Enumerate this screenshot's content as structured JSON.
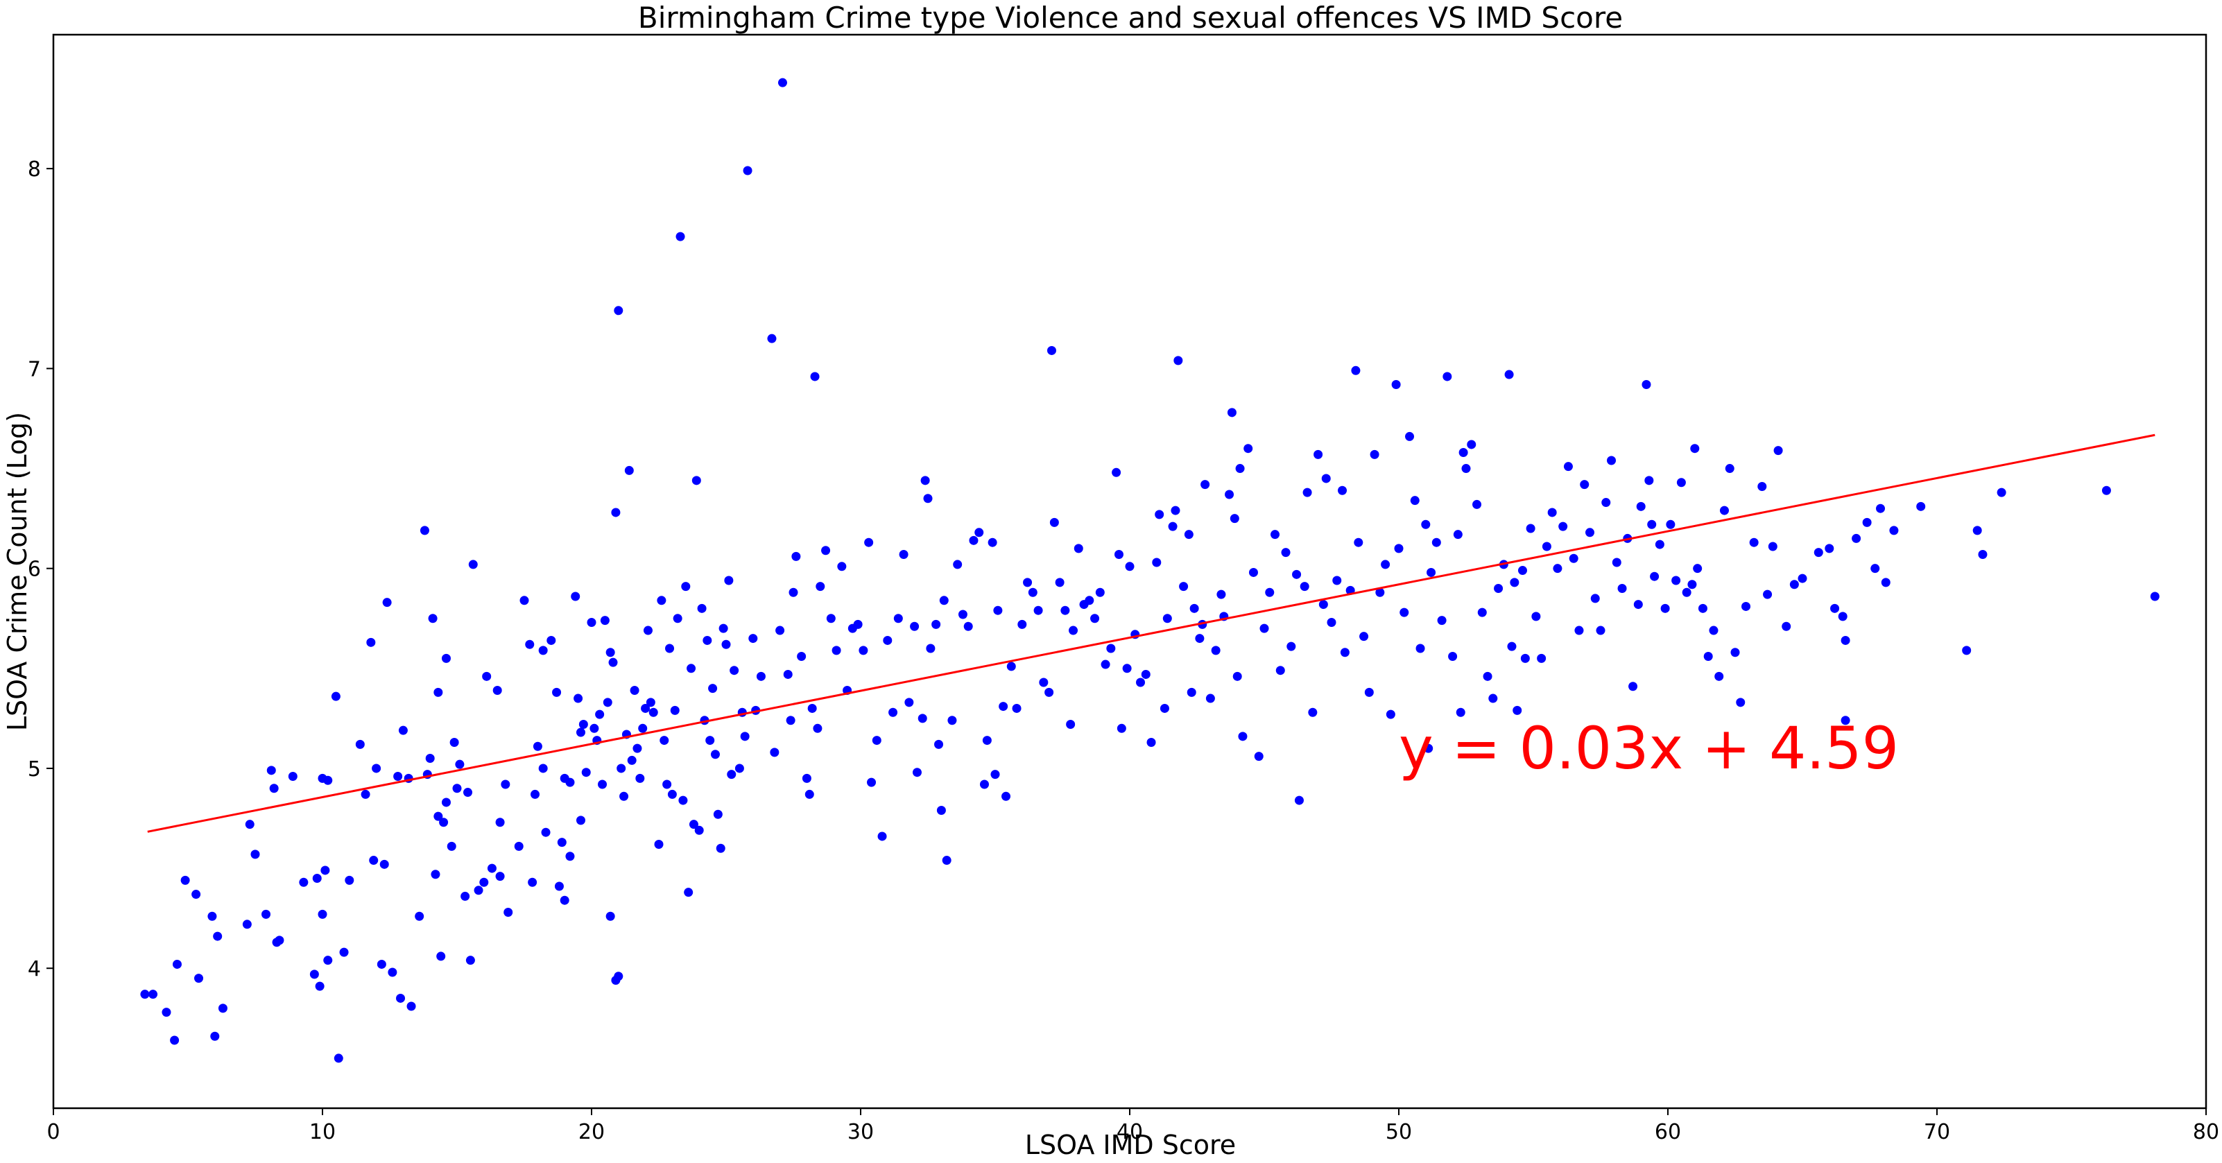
{
  "chart_data": {
    "type": "scatter",
    "title": "Birmingham Crime type Violence and sexual offences VS IMD Score",
    "xlabel": "LSOA IMD Score",
    "ylabel": "LSOA Crime Count (Log)",
    "xlim": [
      0,
      80
    ],
    "ylim": [
      3.3,
      8.67
    ],
    "x_ticks": [
      0,
      10,
      20,
      30,
      40,
      50,
      60,
      70,
      80
    ],
    "y_ticks": [
      4,
      5,
      6,
      7,
      8
    ],
    "grid": false,
    "legend": "none",
    "point_color": "#0000ff",
    "line_color": "#ff0000",
    "annotation": {
      "text": "y = 0.03x + 4.59",
      "x": 50,
      "y": 5.0,
      "color": "#ff0000"
    },
    "regression": {
      "slope": 0.0266,
      "intercept": 4.59,
      "x_range": [
        3.5,
        78.1
      ]
    },
    "points": [
      [
        3.4,
        3.87
      ],
      [
        3.7,
        3.87
      ],
      [
        4.2,
        3.78
      ],
      [
        4.5,
        3.64
      ],
      [
        4.6,
        4.02
      ],
      [
        4.9,
        4.44
      ],
      [
        5.3,
        4.37
      ],
      [
        5.4,
        3.95
      ],
      [
        5.9,
        4.26
      ],
      [
        6.0,
        3.66
      ],
      [
        6.1,
        4.16
      ],
      [
        6.3,
        3.8
      ],
      [
        7.2,
        4.22
      ],
      [
        7.3,
        4.72
      ],
      [
        7.5,
        4.57
      ],
      [
        7.9,
        4.27
      ],
      [
        8.1,
        4.99
      ],
      [
        8.2,
        4.9
      ],
      [
        8.3,
        4.13
      ],
      [
        8.4,
        4.14
      ],
      [
        8.9,
        4.96
      ],
      [
        9.3,
        4.43
      ],
      [
        9.7,
        3.97
      ],
      [
        9.8,
        4.45
      ],
      [
        9.9,
        3.91
      ],
      [
        10.0,
        4.95
      ],
      [
        10.0,
        4.27
      ],
      [
        10.1,
        4.49
      ],
      [
        10.2,
        4.94
      ],
      [
        10.2,
        4.04
      ],
      [
        10.5,
        5.36
      ],
      [
        10.6,
        3.55
      ],
      [
        10.8,
        4.08
      ],
      [
        11.0,
        4.44
      ],
      [
        11.4,
        5.12
      ],
      [
        11.6,
        4.87
      ],
      [
        11.8,
        5.63
      ],
      [
        11.9,
        4.54
      ],
      [
        12.0,
        5.0
      ],
      [
        12.2,
        4.02
      ],
      [
        12.3,
        4.52
      ],
      [
        12.4,
        5.83
      ],
      [
        12.6,
        3.98
      ],
      [
        12.8,
        4.96
      ],
      [
        12.9,
        3.85
      ],
      [
        13.3,
        3.81
      ],
      [
        13.2,
        4.95
      ],
      [
        13.0,
        5.19
      ],
      [
        13.6,
        4.26
      ],
      [
        13.8,
        6.19
      ],
      [
        13.9,
        4.97
      ],
      [
        14.0,
        5.05
      ],
      [
        14.1,
        5.75
      ],
      [
        14.2,
        4.47
      ],
      [
        14.3,
        5.38
      ],
      [
        14.3,
        4.76
      ],
      [
        14.4,
        4.06
      ],
      [
        14.6,
        4.83
      ],
      [
        14.6,
        5.55
      ],
      [
        14.8,
        4.61
      ],
      [
        14.9,
        5.13
      ],
      [
        14.5,
        4.73
      ],
      [
        15.0,
        4.9
      ],
      [
        15.1,
        5.02
      ],
      [
        15.3,
        4.36
      ],
      [
        15.4,
        4.88
      ],
      [
        15.5,
        4.04
      ],
      [
        15.6,
        6.02
      ],
      [
        15.8,
        4.39
      ],
      [
        16.0,
        4.43
      ],
      [
        16.1,
        5.46
      ],
      [
        16.3,
        4.5
      ],
      [
        16.5,
        5.39
      ],
      [
        16.6,
        4.73
      ],
      [
        16.6,
        4.46
      ],
      [
        16.8,
        4.92
      ],
      [
        16.9,
        4.28
      ],
      [
        17.3,
        4.61
      ],
      [
        17.5,
        5.84
      ],
      [
        17.7,
        5.62
      ],
      [
        17.8,
        4.43
      ],
      [
        17.9,
        4.87
      ],
      [
        18.0,
        5.11
      ],
      [
        18.2,
        5.0
      ],
      [
        18.2,
        5.59
      ],
      [
        18.3,
        4.68
      ],
      [
        18.5,
        5.64
      ],
      [
        18.7,
        5.38
      ],
      [
        18.8,
        4.41
      ],
      [
        18.9,
        4.63
      ],
      [
        19.0,
        4.34
      ],
      [
        19.0,
        4.95
      ],
      [
        19.2,
        4.56
      ],
      [
        19.2,
        4.93
      ],
      [
        19.4,
        5.86
      ],
      [
        19.5,
        5.35
      ],
      [
        19.6,
        4.74
      ],
      [
        19.6,
        5.18
      ],
      [
        19.7,
        5.22
      ],
      [
        19.8,
        4.98
      ],
      [
        20.0,
        5.73
      ],
      [
        20.1,
        5.2
      ],
      [
        20.2,
        5.14
      ],
      [
        20.3,
        5.27
      ],
      [
        20.4,
        4.92
      ],
      [
        20.5,
        5.74
      ],
      [
        20.6,
        5.33
      ],
      [
        20.7,
        4.26
      ],
      [
        20.7,
        5.58
      ],
      [
        20.8,
        5.53
      ],
      [
        20.9,
        6.28
      ],
      [
        20.9,
        3.94
      ],
      [
        21.0,
        3.96
      ],
      [
        21.0,
        7.29
      ],
      [
        21.1,
        5.0
      ],
      [
        21.2,
        4.86
      ],
      [
        21.3,
        5.17
      ],
      [
        21.4,
        6.49
      ],
      [
        21.5,
        5.04
      ],
      [
        21.6,
        5.39
      ],
      [
        21.7,
        5.1
      ],
      [
        21.8,
        4.95
      ],
      [
        21.9,
        5.2
      ],
      [
        22.0,
        5.3
      ],
      [
        22.1,
        5.69
      ],
      [
        22.2,
        5.33
      ],
      [
        22.3,
        5.28
      ],
      [
        22.5,
        4.62
      ],
      [
        22.6,
        5.84
      ],
      [
        22.7,
        5.14
      ],
      [
        22.8,
        4.92
      ],
      [
        22.9,
        5.6
      ],
      [
        23.0,
        4.87
      ],
      [
        23.1,
        5.29
      ],
      [
        23.2,
        5.75
      ],
      [
        23.3,
        7.66
      ],
      [
        23.4,
        4.84
      ],
      [
        23.5,
        5.91
      ],
      [
        23.6,
        4.38
      ],
      [
        23.7,
        5.5
      ],
      [
        23.8,
        4.72
      ],
      [
        23.9,
        6.44
      ],
      [
        24.0,
        4.69
      ],
      [
        24.1,
        5.8
      ],
      [
        24.2,
        5.24
      ],
      [
        24.3,
        5.64
      ],
      [
        24.4,
        5.14
      ],
      [
        24.5,
        5.4
      ],
      [
        24.6,
        5.07
      ],
      [
        24.7,
        4.77
      ],
      [
        24.8,
        4.6
      ],
      [
        24.9,
        5.7
      ],
      [
        25.0,
        5.62
      ],
      [
        25.1,
        5.94
      ],
      [
        25.2,
        4.97
      ],
      [
        25.3,
        5.49
      ],
      [
        25.5,
        5.0
      ],
      [
        25.6,
        5.28
      ],
      [
        25.7,
        5.16
      ],
      [
        25.8,
        7.99
      ],
      [
        26.0,
        5.65
      ],
      [
        26.1,
        5.29
      ],
      [
        26.3,
        5.46
      ],
      [
        26.7,
        7.15
      ],
      [
        26.8,
        5.08
      ],
      [
        27.0,
        5.69
      ],
      [
        27.1,
        8.43
      ],
      [
        27.3,
        5.47
      ],
      [
        27.4,
        5.24
      ],
      [
        27.5,
        5.88
      ],
      [
        27.6,
        6.06
      ],
      [
        27.8,
        5.56
      ],
      [
        28.0,
        4.95
      ],
      [
        28.1,
        4.87
      ],
      [
        28.2,
        5.3
      ],
      [
        28.3,
        6.96
      ],
      [
        28.4,
        5.2
      ],
      [
        28.5,
        5.91
      ],
      [
        28.7,
        6.09
      ],
      [
        28.9,
        5.75
      ],
      [
        29.1,
        5.59
      ],
      [
        29.3,
        6.01
      ],
      [
        29.5,
        5.39
      ],
      [
        29.7,
        5.7
      ],
      [
        29.9,
        5.72
      ],
      [
        30.1,
        5.59
      ],
      [
        30.3,
        6.13
      ],
      [
        30.4,
        4.93
      ],
      [
        30.6,
        5.14
      ],
      [
        30.8,
        4.66
      ],
      [
        31.0,
        5.64
      ],
      [
        31.2,
        5.28
      ],
      [
        31.4,
        5.75
      ],
      [
        31.6,
        6.07
      ],
      [
        31.8,
        5.33
      ],
      [
        32.0,
        5.71
      ],
      [
        32.1,
        4.98
      ],
      [
        32.3,
        5.25
      ],
      [
        32.4,
        6.44
      ],
      [
        32.5,
        6.35
      ],
      [
        32.6,
        5.6
      ],
      [
        32.8,
        5.72
      ],
      [
        32.9,
        5.12
      ],
      [
        33.0,
        4.79
      ],
      [
        33.1,
        5.84
      ],
      [
        33.2,
        4.54
      ],
      [
        33.4,
        5.24
      ],
      [
        33.6,
        6.02
      ],
      [
        33.8,
        5.77
      ],
      [
        34.0,
        5.71
      ],
      [
        34.2,
        6.14
      ],
      [
        34.4,
        6.18
      ],
      [
        34.6,
        4.92
      ],
      [
        34.7,
        5.14
      ],
      [
        34.9,
        6.13
      ],
      [
        35.0,
        4.97
      ],
      [
        35.1,
        5.79
      ],
      [
        35.3,
        5.31
      ],
      [
        35.4,
        4.86
      ],
      [
        35.6,
        5.51
      ],
      [
        35.8,
        5.3
      ],
      [
        36.0,
        5.72
      ],
      [
        36.2,
        5.93
      ],
      [
        36.4,
        5.88
      ],
      [
        36.6,
        5.79
      ],
      [
        36.8,
        5.43
      ],
      [
        37.0,
        5.38
      ],
      [
        37.1,
        7.09
      ],
      [
        37.2,
        6.23
      ],
      [
        37.4,
        5.93
      ],
      [
        37.6,
        5.79
      ],
      [
        37.8,
        5.22
      ],
      [
        37.9,
        5.69
      ],
      [
        38.1,
        6.1
      ],
      [
        38.3,
        5.82
      ],
      [
        38.5,
        5.84
      ],
      [
        38.7,
        5.75
      ],
      [
        38.9,
        5.88
      ],
      [
        39.1,
        5.52
      ],
      [
        39.3,
        5.6
      ],
      [
        39.5,
        6.48
      ],
      [
        39.6,
        6.07
      ],
      [
        39.7,
        5.2
      ],
      [
        39.9,
        5.5
      ],
      [
        40.0,
        6.01
      ],
      [
        40.2,
        5.67
      ],
      [
        40.4,
        5.43
      ],
      [
        40.6,
        5.47
      ],
      [
        40.8,
        5.13
      ],
      [
        41.0,
        6.03
      ],
      [
        41.1,
        6.27
      ],
      [
        41.3,
        5.3
      ],
      [
        41.4,
        5.75
      ],
      [
        41.6,
        6.21
      ],
      [
        41.7,
        6.29
      ],
      [
        41.8,
        7.04
      ],
      [
        42.0,
        5.91
      ],
      [
        42.2,
        6.17
      ],
      [
        42.3,
        5.38
      ],
      [
        42.4,
        5.8
      ],
      [
        42.6,
        5.65
      ],
      [
        42.7,
        5.72
      ],
      [
        42.8,
        6.42
      ],
      [
        43.0,
        5.35
      ],
      [
        43.2,
        5.59
      ],
      [
        43.4,
        5.87
      ],
      [
        43.5,
        5.76
      ],
      [
        43.7,
        6.37
      ],
      [
        43.8,
        6.78
      ],
      [
        43.9,
        6.25
      ],
      [
        44.0,
        5.46
      ],
      [
        44.1,
        6.5
      ],
      [
        44.2,
        5.16
      ],
      [
        44.4,
        6.6
      ],
      [
        44.6,
        5.98
      ],
      [
        44.8,
        5.06
      ],
      [
        45.0,
        5.7
      ],
      [
        45.2,
        5.88
      ],
      [
        45.4,
        6.17
      ],
      [
        45.6,
        5.49
      ],
      [
        45.8,
        6.08
      ],
      [
        46.0,
        5.61
      ],
      [
        46.2,
        5.97
      ],
      [
        46.3,
        4.84
      ],
      [
        46.5,
        5.91
      ],
      [
        46.6,
        6.38
      ],
      [
        46.8,
        5.28
      ],
      [
        47.0,
        6.57
      ],
      [
        47.2,
        5.82
      ],
      [
        47.3,
        6.45
      ],
      [
        47.5,
        5.73
      ],
      [
        47.7,
        5.94
      ],
      [
        47.9,
        6.39
      ],
      [
        48.0,
        5.58
      ],
      [
        48.2,
        5.89
      ],
      [
        48.4,
        6.99
      ],
      [
        48.5,
        6.13
      ],
      [
        48.7,
        5.66
      ],
      [
        48.9,
        5.38
      ],
      [
        49.1,
        6.57
      ],
      [
        49.3,
        5.88
      ],
      [
        49.5,
        6.02
      ],
      [
        49.7,
        5.27
      ],
      [
        49.9,
        6.92
      ],
      [
        50.0,
        6.1
      ],
      [
        50.2,
        5.78
      ],
      [
        50.4,
        6.66
      ],
      [
        50.6,
        6.34
      ],
      [
        50.8,
        5.6
      ],
      [
        51.0,
        6.22
      ],
      [
        51.1,
        5.1
      ],
      [
        51.2,
        5.98
      ],
      [
        51.4,
        6.13
      ],
      [
        51.6,
        5.74
      ],
      [
        51.8,
        6.96
      ],
      [
        52.0,
        5.56
      ],
      [
        52.2,
        6.17
      ],
      [
        52.3,
        5.28
      ],
      [
        52.4,
        6.58
      ],
      [
        52.5,
        6.5
      ],
      [
        52.7,
        6.62
      ],
      [
        52.9,
        6.32
      ],
      [
        53.1,
        5.78
      ],
      [
        53.3,
        5.46
      ],
      [
        53.5,
        5.35
      ],
      [
        53.7,
        5.9
      ],
      [
        53.9,
        6.02
      ],
      [
        54.1,
        6.97
      ],
      [
        54.2,
        5.61
      ],
      [
        54.3,
        5.93
      ],
      [
        54.4,
        5.29
      ],
      [
        54.6,
        5.99
      ],
      [
        54.7,
        5.55
      ],
      [
        54.9,
        6.2
      ],
      [
        55.1,
        5.76
      ],
      [
        55.3,
        5.55
      ],
      [
        55.5,
        6.11
      ],
      [
        55.7,
        6.28
      ],
      [
        55.9,
        6.0
      ],
      [
        56.1,
        6.21
      ],
      [
        56.3,
        6.51
      ],
      [
        56.5,
        6.05
      ],
      [
        56.7,
        5.69
      ],
      [
        56.9,
        6.42
      ],
      [
        57.1,
        6.18
      ],
      [
        57.3,
        5.85
      ],
      [
        57.5,
        5.69
      ],
      [
        57.7,
        6.33
      ],
      [
        57.9,
        6.54
      ],
      [
        58.1,
        6.03
      ],
      [
        58.3,
        5.9
      ],
      [
        58.5,
        6.15
      ],
      [
        58.7,
        5.41
      ],
      [
        58.9,
        5.82
      ],
      [
        59.0,
        6.31
      ],
      [
        59.2,
        6.92
      ],
      [
        59.3,
        6.44
      ],
      [
        59.4,
        6.22
      ],
      [
        59.5,
        5.96
      ],
      [
        59.7,
        6.12
      ],
      [
        59.9,
        5.8
      ],
      [
        60.1,
        6.22
      ],
      [
        60.3,
        5.94
      ],
      [
        60.5,
        6.43
      ],
      [
        60.7,
        5.88
      ],
      [
        60.9,
        5.92
      ],
      [
        61.0,
        6.6
      ],
      [
        61.1,
        6.0
      ],
      [
        61.3,
        5.8
      ],
      [
        61.5,
        5.56
      ],
      [
        61.7,
        5.69
      ],
      [
        61.9,
        5.46
      ],
      [
        62.1,
        6.29
      ],
      [
        62.3,
        6.5
      ],
      [
        62.5,
        5.58
      ],
      [
        62.7,
        5.33
      ],
      [
        62.9,
        5.81
      ],
      [
        63.2,
        6.13
      ],
      [
        63.5,
        6.41
      ],
      [
        63.7,
        5.87
      ],
      [
        63.9,
        6.11
      ],
      [
        64.1,
        6.59
      ],
      [
        64.4,
        5.71
      ],
      [
        64.7,
        5.92
      ],
      [
        65.0,
        5.95
      ],
      [
        65.6,
        6.08
      ],
      [
        66.0,
        6.1
      ],
      [
        66.2,
        5.8
      ],
      [
        66.5,
        5.76
      ],
      [
        66.6,
        5.64
      ],
      [
        66.6,
        5.24
      ],
      [
        67.0,
        6.15
      ],
      [
        67.4,
        6.23
      ],
      [
        67.7,
        6.0
      ],
      [
        67.9,
        6.3
      ],
      [
        68.1,
        5.93
      ],
      [
        68.4,
        6.19
      ],
      [
        69.4,
        6.31
      ],
      [
        71.1,
        5.59
      ],
      [
        71.5,
        6.19
      ],
      [
        71.7,
        6.07
      ],
      [
        72.4,
        6.38
      ],
      [
        76.3,
        6.39
      ],
      [
        78.1,
        5.86
      ]
    ]
  }
}
